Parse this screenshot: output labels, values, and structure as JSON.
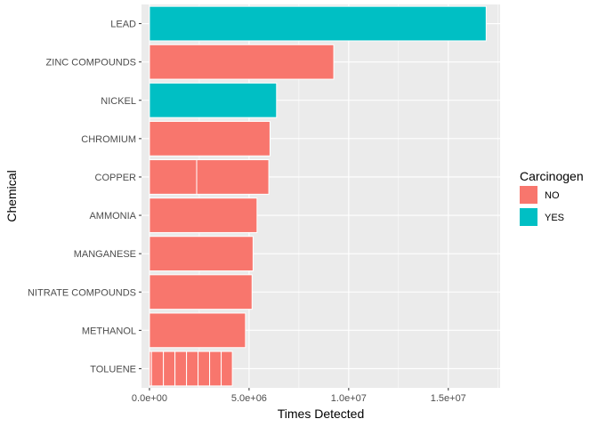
{
  "chart_data": {
    "type": "bar",
    "orientation": "horizontal",
    "stacked": true,
    "xlabel": "Times Detected",
    "ylabel": "Chemical",
    "xlim": [
      -400000,
      17600000
    ],
    "x_ticks": [
      0,
      5000000,
      10000000,
      15000000
    ],
    "x_tick_labels": [
      "0.0e+00",
      "5.0e+06",
      "1.0e+07",
      "1.5e+07"
    ],
    "grid": true,
    "legend": {
      "title": "Carcinogen",
      "position": "right",
      "entries": [
        {
          "label": "NO",
          "color": "#F8766D"
        },
        {
          "label": "YES",
          "color": "#00BFC4"
        }
      ]
    },
    "categories": [
      "LEAD",
      "ZINC COMPOUNDS",
      "NICKEL",
      "CHROMIUM",
      "COPPER",
      "AMMONIA",
      "MANGANESE",
      "NITRATE COMPOUNDS",
      "METHANOL",
      "TOLUENE"
    ],
    "bars": [
      {
        "category": "LEAD",
        "carcinogen": "YES",
        "segments": [
          16900000
        ]
      },
      {
        "category": "ZINC COMPOUNDS",
        "carcinogen": "NO",
        "segments": [
          9250000
        ]
      },
      {
        "category": "NICKEL",
        "carcinogen": "YES",
        "segments": [
          6380000
        ]
      },
      {
        "category": "CHROMIUM",
        "carcinogen": "NO",
        "segments": [
          6050000
        ]
      },
      {
        "category": "COPPER",
        "carcinogen": "NO",
        "segments": [
          2370000,
          3620000
        ]
      },
      {
        "category": "AMMONIA",
        "carcinogen": "NO",
        "segments": [
          5400000
        ]
      },
      {
        "category": "MANGANESE",
        "carcinogen": "NO",
        "segments": [
          5200000
        ]
      },
      {
        "category": "NITRATE COMPOUNDS",
        "carcinogen": "NO",
        "segments": [
          5150000
        ]
      },
      {
        "category": "METHANOL",
        "carcinogen": "NO",
        "segments": [
          4820000
        ]
      },
      {
        "category": "TOLUENE",
        "carcinogen": "NO",
        "segments": [
          100000,
          600000,
          580000,
          580000,
          580000,
          580000,
          580000,
          560000
        ]
      }
    ]
  }
}
